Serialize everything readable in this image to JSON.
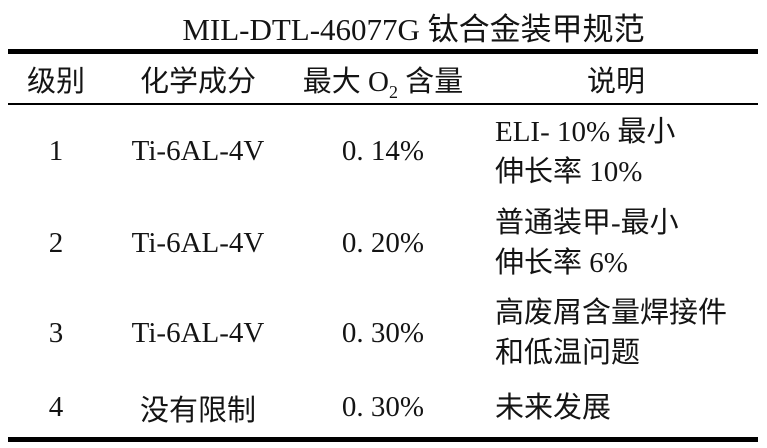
{
  "title": "MIL-DTL-46077G 钛合金装甲规范",
  "table": {
    "headers": {
      "grade": "级别",
      "composition": "化学成分",
      "max_o2_prefix": "最大 O",
      "max_o2_sub": "2",
      "max_o2_suffix": " 含量",
      "description": "说明"
    },
    "rows": [
      {
        "grade": "1",
        "composition": "Ti-6AL-4V",
        "max_o2": "0. 14%",
        "description_line1": "ELI- 10% 最小",
        "description_line2": "伸长率 10%"
      },
      {
        "grade": "2",
        "composition": "Ti-6AL-4V",
        "max_o2": "0. 20%",
        "description_line1": "普通装甲-最小",
        "description_line2": "伸长率 6%"
      },
      {
        "grade": "3",
        "composition": "Ti-6AL-4V",
        "max_o2": "0. 30%",
        "description_line1": "高废屑含量焊接件",
        "description_line2": "和低温问题"
      },
      {
        "grade": "4",
        "composition": "没有限制",
        "max_o2": "0. 30%",
        "description_line1": "未来发展"
      }
    ]
  },
  "colors": {
    "background": "#ffffff",
    "text": "#141414",
    "rule": "#000000"
  }
}
